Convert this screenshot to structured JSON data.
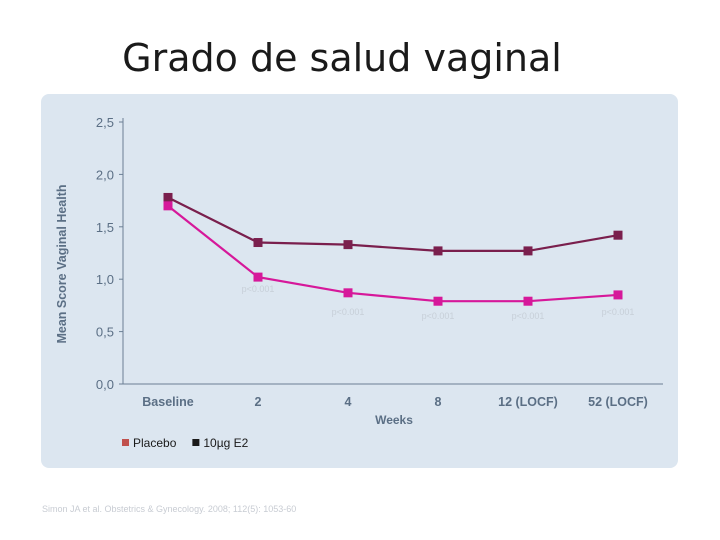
{
  "slide": {
    "title": "Grado de salud vaginal",
    "citation": "Simon JA et al. Obstetrics & Gynecology. 2008; 112(5): 1053-60"
  },
  "chart_data": {
    "type": "line",
    "title": "",
    "xlabel": "Weeks",
    "ylabel": "Mean Score Vaginal Health",
    "categories": [
      "Baseline",
      "2",
      "4",
      "8",
      "12 (LOCF)",
      "52 (LOCF)"
    ],
    "ylim": [
      0,
      2.5
    ],
    "yticks": [
      "0,0",
      "0,5",
      "1,0",
      "1,5",
      "2,0",
      "2,5"
    ],
    "grid": false,
    "legend_position": "bottom-left",
    "series": [
      {
        "name": "Placebo",
        "color": "#7a1f4d",
        "values": [
          1.78,
          1.35,
          1.33,
          1.27,
          1.27,
          1.42
        ]
      },
      {
        "name": "10µg E2",
        "color": "#d6189a",
        "values": [
          1.7,
          1.02,
          0.87,
          0.79,
          0.79,
          0.85
        ]
      }
    ],
    "legend": [
      {
        "label": "Placebo",
        "color": "#c0504d"
      },
      {
        "label": "10µg E2",
        "color": "#1a1a1a"
      }
    ],
    "annotations": [
      {
        "category": "2",
        "y": 0.88,
        "text": "p<0.001"
      },
      {
        "category": "4",
        "y": 0.66,
        "text": "p<0.001"
      },
      {
        "category": "8",
        "y": 0.62,
        "text": "p<0.001"
      },
      {
        "category": "12 (LOCF)",
        "y": 0.62,
        "text": "p<0.001"
      },
      {
        "category": "52 (LOCF)",
        "y": 0.66,
        "text": "p<0.001"
      }
    ]
  }
}
